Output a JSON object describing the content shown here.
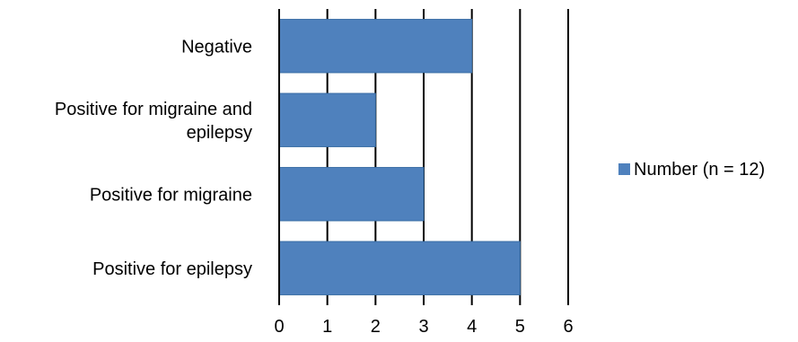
{
  "chart_data": {
    "type": "bar",
    "orientation": "horizontal",
    "categories": [
      "Negative",
      "Positive for migraine and epilepsy",
      "Positive for migraine",
      "Positive for epilepsy"
    ],
    "category_label_lines": [
      [
        "Negative"
      ],
      [
        "Positive for migraine and",
        "epilepsy"
      ],
      [
        "Positive for migraine"
      ],
      [
        "Positive for epilepsy"
      ]
    ],
    "series": [
      {
        "name": "Number (n = 12)",
        "values": [
          4,
          2,
          3,
          5
        ],
        "color": "#4f81bd"
      }
    ],
    "title": "",
    "xlabel": "",
    "ylabel": "",
    "xlim": [
      0,
      6
    ],
    "x_ticks": [
      "0",
      "1",
      "2",
      "3",
      "4",
      "5",
      "6"
    ],
    "grid": true,
    "legend_position": "right"
  }
}
